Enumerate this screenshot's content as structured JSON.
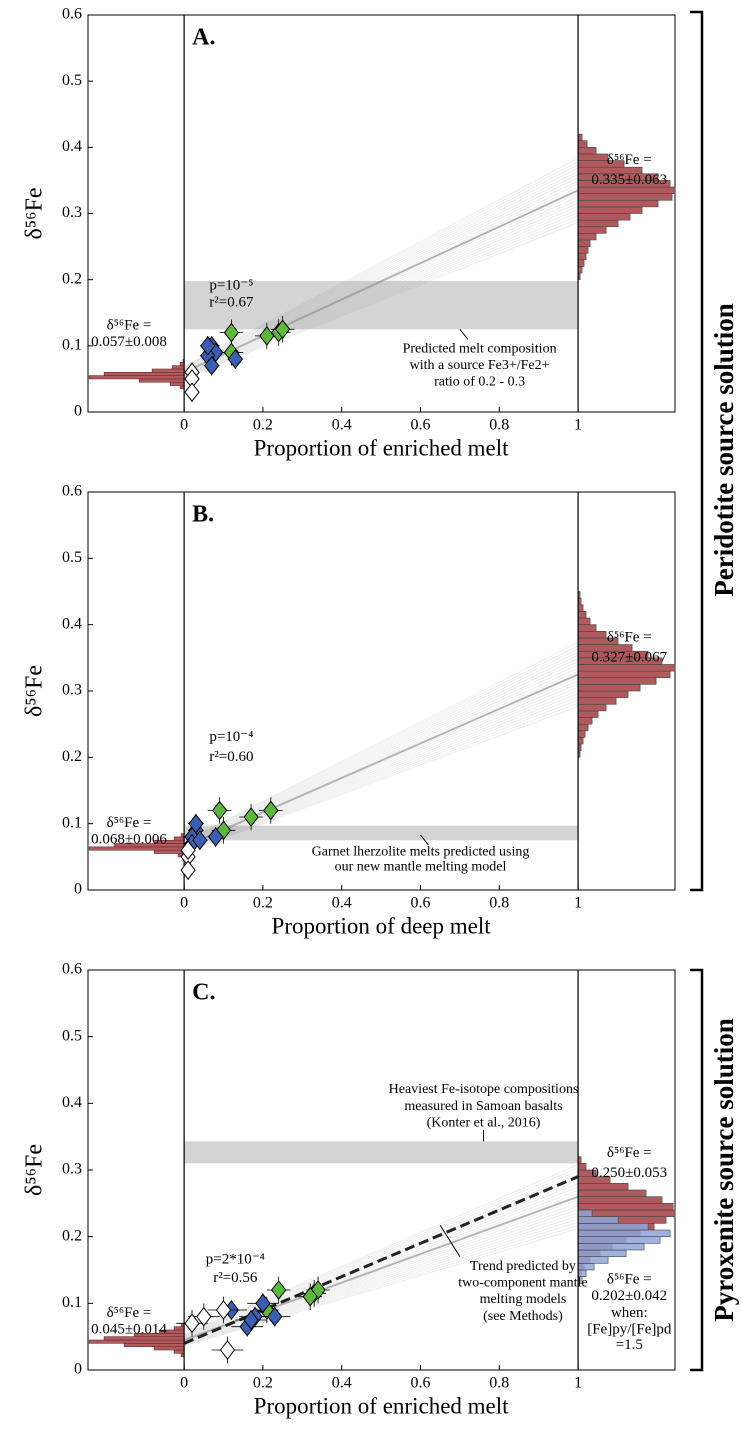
{
  "side_labels": [
    "Peridotite source solution",
    "Pyroxenite source solution"
  ],
  "chart_data": [
    {
      "type": "scatter",
      "panel_label": "A.",
      "x_label": "Proportion of enriched melt",
      "y_label": "δ⁵⁶Fe",
      "xlim": [
        -0.244,
        1.246
      ],
      "ylim": [
        0,
        0.6
      ],
      "xticks": [
        0,
        0.2,
        0.4,
        0.6,
        0.8,
        1
      ],
      "yticks": [
        0,
        0.1,
        0.2,
        0.3,
        0.4,
        0.5,
        0.6
      ],
      "stats": [
        "p=10⁻⁵",
        "r²=0.67"
      ],
      "left_label": [
        "δ⁵⁶Fe =",
        "0.057±0.008"
      ],
      "right_label": [
        "δ⁵⁶Fe =",
        "0.335±0.063"
      ],
      "band": {
        "range": [
          0.125,
          0.198
        ],
        "label": [
          "Predicted melt composition",
          "with a source Fe3+/Fe2+",
          "ratio of 0.2 - 0.3"
        ]
      },
      "trend": {
        "x": [
          0,
          1
        ],
        "values": [
          0.06,
          0.335
        ]
      },
      "series": [
        {
          "color": "#5cb83a",
          "x": [
            0.12,
            0.12,
            0.21,
            0.24,
            0.25
          ],
          "values": [
            0.12,
            0.09,
            0.115,
            0.12,
            0.125
          ],
          "xerr": 0.03,
          "yerr": 0.02
        },
        {
          "color": "#3a5fb0",
          "x": [
            0.07,
            0.08,
            0.06,
            0.07,
            0.13,
            0.06
          ],
          "values": [
            0.1,
            0.09,
            0.085,
            0.07,
            0.08,
            0.1
          ],
          "xerr": 0.02,
          "yerr": 0.015
        },
        {
          "color": "#ffffff",
          "x": [
            0.02,
            0.02,
            0.02
          ],
          "values": [
            0.06,
            0.05,
            0.03
          ],
          "xerr": 0.015,
          "yerr": 0.015
        }
      ],
      "hist_left": {
        "color": "#b05a5e",
        "bins": [
          0.035,
          0.04,
          0.045,
          0.05,
          0.055,
          0.06,
          0.065,
          0.07,
          0.075,
          0.08
        ],
        "counts": [
          4,
          14,
          45,
          95,
          80,
          32,
          12,
          4,
          1
        ]
      },
      "hist_right": [
        {
          "color": "#b05a5e",
          "bins": [
            0.2,
            0.21,
            0.22,
            0.23,
            0.24,
            0.25,
            0.26,
            0.27,
            0.28,
            0.29,
            0.3,
            0.31,
            0.32,
            0.33,
            0.34,
            0.35,
            0.36,
            0.37,
            0.38,
            0.39,
            0.4,
            0.41,
            0.42
          ],
          "counts": [
            2,
            4,
            6,
            8,
            10,
            12,
            18,
            28,
            40,
            52,
            64,
            80,
            94,
            97,
            92,
            80,
            64,
            46,
            30,
            18,
            9,
            4
          ]
        }
      ]
    },
    {
      "type": "scatter",
      "panel_label": "B.",
      "x_label": "Proportion of deep melt",
      "y_label": "δ⁵⁶Fe",
      "xlim": [
        -0.244,
        1.246
      ],
      "ylim": [
        0,
        0.6
      ],
      "xticks": [
        0,
        0.2,
        0.4,
        0.6,
        0.8,
        1
      ],
      "yticks": [
        0,
        0.1,
        0.2,
        0.3,
        0.4,
        0.5,
        0.6
      ],
      "stats": [
        "p=10⁻⁴",
        "r²=0.60"
      ],
      "left_label": [
        "δ⁵⁶Fe =",
        "0.068±0.006"
      ],
      "right_label": [
        "δ⁵⁶Fe =",
        "0.327±0.067"
      ],
      "band": {
        "range": [
          0.075,
          0.097
        ],
        "label": [
          "Garnet lherzolite melts predicted using",
          "our new mantle melting model"
        ]
      },
      "trend": {
        "x": [
          0,
          1
        ],
        "values": [
          0.065,
          0.325
        ]
      },
      "series": [
        {
          "color": "#5cb83a",
          "x": [
            0.09,
            0.1,
            0.17,
            0.22
          ],
          "values": [
            0.12,
            0.09,
            0.11,
            0.12
          ],
          "xerr": 0.03,
          "yerr": 0.02
        },
        {
          "color": "#3a5fb0",
          "x": [
            0.03,
            0.02,
            0.02,
            0.04,
            0.08,
            0.03
          ],
          "values": [
            0.09,
            0.08,
            0.07,
            0.075,
            0.08,
            0.1
          ],
          "xerr": 0.02,
          "yerr": 0.015
        },
        {
          "color": "#ffffff",
          "x": [
            0.01,
            0.01,
            0.01
          ],
          "values": [
            0.05,
            0.03,
            0.06
          ],
          "xerr": 0.01,
          "yerr": 0.015
        }
      ],
      "hist_left": {
        "color": "#b05a5e",
        "bins": [
          0.05,
          0.055,
          0.06,
          0.065,
          0.07,
          0.075,
          0.08,
          0.085
        ],
        "counts": [
          6,
          30,
          95,
          70,
          30,
          10,
          3
        ]
      },
      "hist_right": [
        {
          "color": "#b05a5e",
          "bins": [
            0.2,
            0.21,
            0.22,
            0.23,
            0.24,
            0.25,
            0.26,
            0.27,
            0.28,
            0.29,
            0.3,
            0.31,
            0.32,
            0.33,
            0.34,
            0.35,
            0.36,
            0.37,
            0.38,
            0.39,
            0.4,
            0.41,
            0.42,
            0.43,
            0.44,
            0.45
          ],
          "counts": [
            2,
            3,
            5,
            7,
            10,
            14,
            20,
            28,
            38,
            50,
            62,
            78,
            92,
            97,
            84,
            70,
            54,
            40,
            28,
            18,
            12,
            8,
            5,
            3,
            2
          ]
        }
      ]
    },
    {
      "type": "scatter",
      "panel_label": "C.",
      "x_label": "Proportion of enriched melt",
      "y_label": "δ⁵⁶Fe",
      "xlim": [
        -0.244,
        1.246
      ],
      "ylim": [
        0,
        0.6
      ],
      "xticks": [
        0,
        0.2,
        0.4,
        0.6,
        0.8,
        1
      ],
      "yticks": [
        0,
        0.1,
        0.2,
        0.3,
        0.4,
        0.5,
        0.6
      ],
      "stats": [
        "p=2*10⁻⁴",
        "r²=0.56"
      ],
      "left_label": [
        "δ⁵⁶Fe =",
        "0.045±0.014"
      ],
      "right_label": [
        "δ⁵⁶Fe =",
        "0.250±0.053"
      ],
      "right_label_2": [
        "δ⁵⁶Fe =",
        "0.202±0.042",
        "when:",
        "[Fe]py/[Fe]pd",
        "=1.5"
      ],
      "band": {
        "range": [
          0.31,
          0.343
        ],
        "label": [
          "Heaviest Fe-isotope compositions",
          "measured in Samoan basalts",
          "(Konter et al., 2016)"
        ]
      },
      "trend_label": [
        "Trend predicted by",
        "two-component mantle",
        "melting models",
        "(see Methods)"
      ],
      "trend": {
        "x": [
          0,
          1
        ],
        "values": [
          0.045,
          0.26
        ]
      },
      "dashed_trend": {
        "x": [
          0,
          1
        ],
        "values": [
          0.04,
          0.29
        ]
      },
      "series": [
        {
          "color": "#5cb83a",
          "x": [
            0.24,
            0.21,
            0.33,
            0.34,
            0.32
          ],
          "values": [
            0.12,
            0.09,
            0.115,
            0.12,
            0.11
          ],
          "xerr": 0.03,
          "yerr": 0.02
        },
        {
          "color": "#3a5fb0",
          "x": [
            0.12,
            0.18,
            0.2,
            0.23,
            0.16,
            0.17
          ],
          "values": [
            0.09,
            0.08,
            0.1,
            0.08,
            0.065,
            0.075
          ],
          "xerr": 0.04,
          "yerr": 0.015
        },
        {
          "color": "#ffffff",
          "x": [
            0.1,
            0.02,
            0.11,
            0.05
          ],
          "values": [
            0.09,
            0.07,
            0.03,
            0.08
          ],
          "xerr": 0.04,
          "yerr": 0.02
        }
      ],
      "hist_left": {
        "color": "#b05a5e",
        "bins": [
          0.02,
          0.025,
          0.03,
          0.035,
          0.04,
          0.045,
          0.05,
          0.055,
          0.06,
          0.065,
          0.07
        ],
        "counts": [
          3,
          10,
          30,
          60,
          95,
          80,
          50,
          25,
          10,
          3
        ]
      },
      "hist_right": [
        {
          "color": "#b05a5e",
          "bins": [
            0.14,
            0.15,
            0.16,
            0.17,
            0.18,
            0.19,
            0.2,
            0.21,
            0.22,
            0.23,
            0.24,
            0.25,
            0.26,
            0.27,
            0.28,
            0.29,
            0.3,
            0.31,
            0.32
          ],
          "counts": [
            3,
            6,
            12,
            22,
            34,
            48,
            62,
            76,
            88,
            97,
            95,
            84,
            68,
            50,
            32,
            18,
            8,
            3
          ]
        },
        {
          "color": "#8ea4d8",
          "bins": [
            0.13,
            0.14,
            0.15,
            0.16,
            0.17,
            0.18,
            0.19,
            0.2,
            0.21,
            0.22,
            0.23,
            0.24
          ],
          "counts": [
            4,
            8,
            16,
            30,
            48,
            66,
            82,
            92,
            70,
            40,
            14
          ]
        }
      ]
    }
  ]
}
